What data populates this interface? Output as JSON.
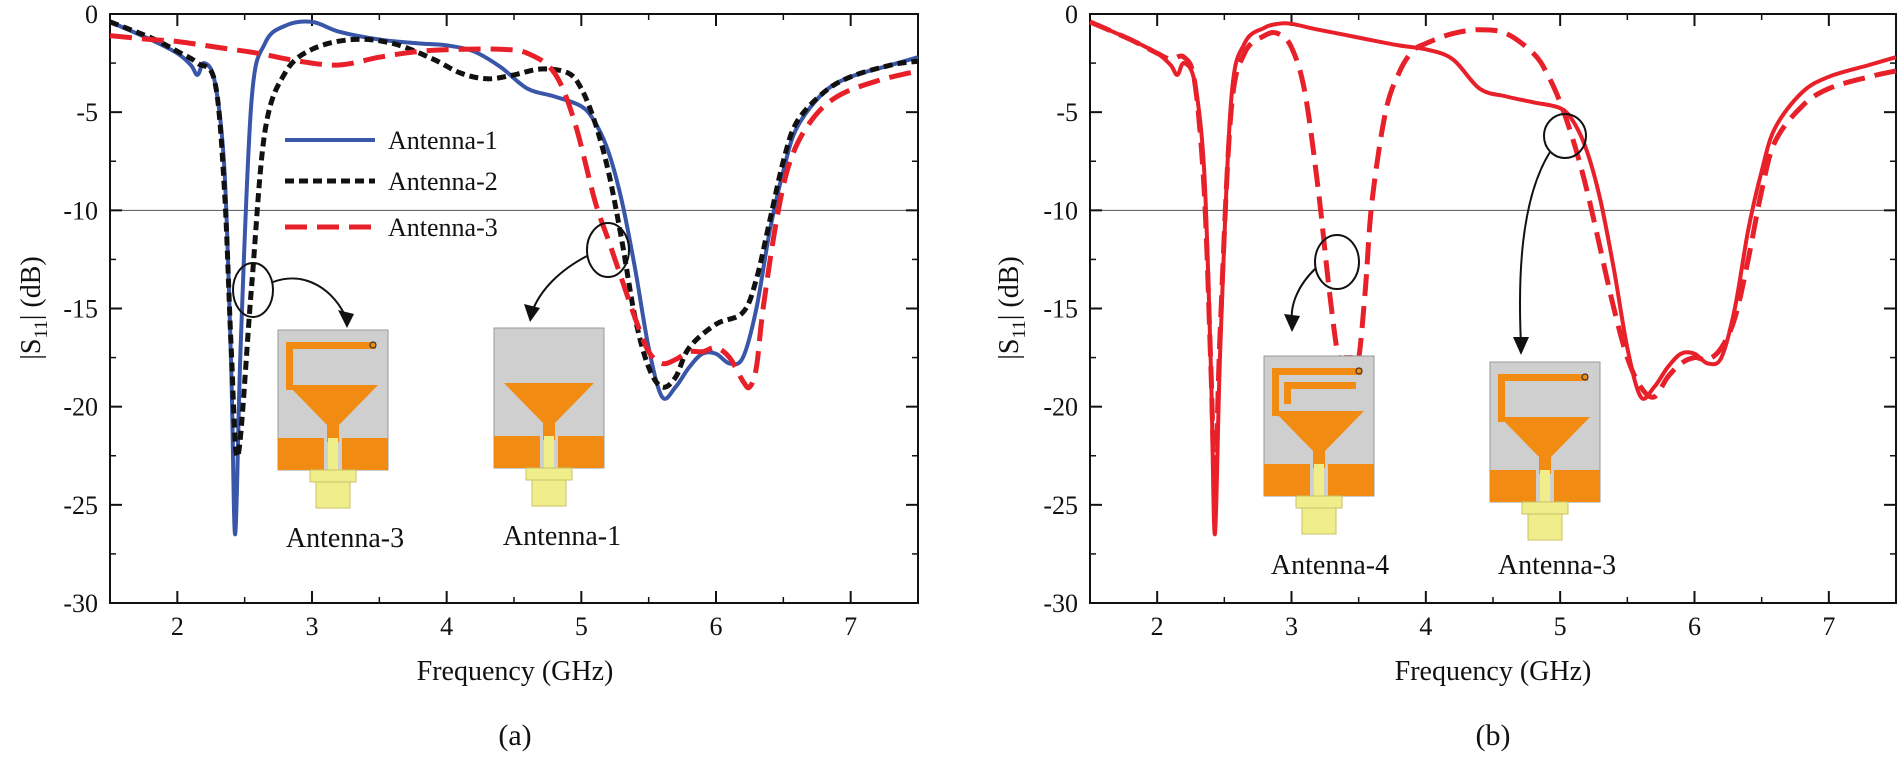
{
  "colors": {
    "antenna1": "#3a56a8",
    "antenna2": "#111111",
    "antenna3": "#e8202a",
    "antenna4": "#e8202a",
    "substrate": "#cfcfcf",
    "copper": "#f18b12",
    "connector": "#f0ee8a",
    "reference_line": "#555555"
  },
  "chart_data": [
    {
      "type": "line",
      "panel_label": "(a)",
      "xlabel": "Frequency (GHz)",
      "ylabel": "|S",
      "ylabel_sub": "11",
      "ylabel_tail": "| (dB)",
      "xlim": [
        1.5,
        7.5
      ],
      "ylim": [
        -30,
        0
      ],
      "xticks": [
        2,
        3,
        4,
        5,
        6,
        7
      ],
      "yticks": [
        0,
        -5,
        -10,
        -15,
        -20,
        -25,
        -30
      ],
      "reference_line_y": -10,
      "legend_position": "upper-center",
      "series": [
        {
          "name": "Antenna-1",
          "style": "solid",
          "x": [
            1.5,
            1.8,
            2.0,
            2.1,
            2.15,
            2.2,
            2.28,
            2.35,
            2.4,
            2.43,
            2.47,
            2.55,
            2.65,
            2.8,
            3.0,
            3.2,
            3.5,
            3.8,
            4.0,
            4.2,
            4.4,
            4.6,
            4.8,
            5.0,
            5.1,
            5.2,
            5.3,
            5.4,
            5.5,
            5.6,
            5.7,
            5.8,
            5.9,
            6.0,
            6.1,
            6.2,
            6.3,
            6.4,
            6.5,
            6.6,
            6.8,
            7.0,
            7.3,
            7.5
          ],
          "y": [
            -0.4,
            -1.3,
            -2.0,
            -2.6,
            -3.1,
            -2.5,
            -3.5,
            -8.0,
            -18.0,
            -26.5,
            -17.0,
            -4.5,
            -1.5,
            -0.6,
            -0.4,
            -0.9,
            -1.3,
            -1.5,
            -1.6,
            -1.9,
            -2.7,
            -3.8,
            -4.2,
            -4.7,
            -5.5,
            -7.0,
            -9.5,
            -13.0,
            -17.0,
            -19.5,
            -19.0,
            -18.0,
            -17.3,
            -17.3,
            -17.8,
            -17.5,
            -15.0,
            -11.0,
            -8.0,
            -5.8,
            -4.0,
            -3.2,
            -2.6,
            -2.2
          ]
        },
        {
          "name": "Antenna-2",
          "style": "dotted",
          "x": [
            1.5,
            1.8,
            2.0,
            2.15,
            2.28,
            2.35,
            2.4,
            2.45,
            2.55,
            2.65,
            2.8,
            3.0,
            3.3,
            3.6,
            3.9,
            4.1,
            4.3,
            4.5,
            4.7,
            4.9,
            5.0,
            5.1,
            5.2,
            5.3,
            5.4,
            5.5,
            5.6,
            5.7,
            5.8,
            6.0,
            6.2,
            6.3,
            6.4,
            6.5,
            6.6,
            6.8,
            7.0,
            7.3,
            7.5
          ],
          "y": [
            -0.4,
            -1.2,
            -1.9,
            -2.5,
            -3.5,
            -9.0,
            -17.0,
            -22.5,
            -14.0,
            -6.0,
            -3.0,
            -1.8,
            -1.3,
            -1.5,
            -2.3,
            -3.0,
            -3.3,
            -3.1,
            -2.8,
            -3.0,
            -3.8,
            -5.5,
            -8.0,
            -11.5,
            -15.5,
            -18.0,
            -19.0,
            -18.5,
            -17.0,
            -15.8,
            -15.2,
            -13.5,
            -10.5,
            -7.5,
            -5.5,
            -4.0,
            -3.2,
            -2.6,
            -2.4
          ]
        },
        {
          "name": "Antenna-3",
          "style": "dashed",
          "x": [
            1.5,
            1.8,
            2.0,
            2.3,
            2.6,
            2.9,
            3.2,
            3.5,
            3.8,
            4.1,
            4.4,
            4.6,
            4.8,
            4.95,
            5.1,
            5.2,
            5.3,
            5.4,
            5.5,
            5.6,
            5.7,
            5.8,
            5.9,
            6.0,
            6.1,
            6.2,
            6.25,
            6.3,
            6.35,
            6.45,
            6.55,
            6.7,
            6.9,
            7.2,
            7.5
          ],
          "y": [
            -1.1,
            -1.3,
            -1.4,
            -1.7,
            -2.0,
            -2.4,
            -2.6,
            -2.2,
            -1.9,
            -1.8,
            -1.8,
            -2.0,
            -3.0,
            -5.5,
            -9.5,
            -11.5,
            -13.5,
            -15.5,
            -17.2,
            -17.8,
            -17.6,
            -17.2,
            -17.2,
            -17.0,
            -17.5,
            -18.7,
            -19.0,
            -18.0,
            -15.0,
            -10.5,
            -7.5,
            -5.5,
            -4.2,
            -3.4,
            -2.9
          ]
        }
      ],
      "insets": [
        {
          "label": "Antenna-3",
          "variant": "antenna-3"
        },
        {
          "label": "Antenna-1",
          "variant": "antenna-1"
        }
      ]
    },
    {
      "type": "line",
      "panel_label": "(b)",
      "xlabel": "Frequency (GHz)",
      "ylabel": "|S",
      "ylabel_sub": "11",
      "ylabel_tail": "| (dB)",
      "xlim": [
        1.5,
        7.5
      ],
      "ylim": [
        -30,
        0
      ],
      "xticks": [
        2,
        3,
        4,
        5,
        6,
        7
      ],
      "yticks": [
        0,
        -5,
        -10,
        -15,
        -20,
        -25,
        -30
      ],
      "reference_line_y": -10,
      "series": [
        {
          "name": "Antenna-3",
          "style": "solid",
          "x": [
            1.5,
            1.8,
            2.0,
            2.1,
            2.15,
            2.2,
            2.28,
            2.35,
            2.4,
            2.43,
            2.47,
            2.55,
            2.65,
            2.8,
            2.9,
            3.0,
            3.2,
            3.5,
            3.8,
            4.0,
            4.2,
            4.4,
            4.6,
            4.8,
            5.0,
            5.1,
            5.2,
            5.3,
            5.4,
            5.5,
            5.6,
            5.7,
            5.8,
            5.9,
            6.0,
            6.1,
            6.2,
            6.3,
            6.4,
            6.5,
            6.6,
            6.8,
            7.0,
            7.3,
            7.5
          ],
          "y": [
            -0.4,
            -1.3,
            -2.0,
            -2.6,
            -3.1,
            -2.5,
            -3.5,
            -8.0,
            -18.0,
            -26.5,
            -17.0,
            -4.5,
            -1.5,
            -0.7,
            -0.5,
            -0.5,
            -0.8,
            -1.2,
            -1.6,
            -1.8,
            -2.3,
            -3.8,
            -4.2,
            -4.5,
            -4.8,
            -5.5,
            -7.0,
            -9.5,
            -13.0,
            -17.0,
            -19.5,
            -19.0,
            -18.0,
            -17.3,
            -17.3,
            -17.8,
            -17.5,
            -15.0,
            -11.0,
            -8.0,
            -5.8,
            -4.0,
            -3.2,
            -2.6,
            -2.2
          ]
        },
        {
          "name": "Antenna-4",
          "style": "dashed",
          "x": [
            1.5,
            1.8,
            2.0,
            2.1,
            2.2,
            2.28,
            2.35,
            2.4,
            2.43,
            2.47,
            2.55,
            2.65,
            2.8,
            2.9,
            3.0,
            3.1,
            3.2,
            3.28,
            3.35,
            3.4,
            3.45,
            3.5,
            3.55,
            3.6,
            3.7,
            3.8,
            3.9,
            4.0,
            4.2,
            4.4,
            4.6,
            4.8,
            4.9,
            5.0,
            5.1,
            5.2,
            5.3,
            5.4,
            5.5,
            5.6,
            5.7,
            5.8,
            5.9,
            6.0,
            6.1,
            6.2,
            6.3,
            6.4,
            6.5,
            6.6,
            6.8,
            7.0,
            7.3,
            7.5
          ],
          "y": [
            -0.4,
            -1.3,
            -2.0,
            -2.3,
            -2.2,
            -3.5,
            -9.0,
            -18.0,
            -24.0,
            -16.0,
            -5.0,
            -2.0,
            -1.1,
            -1.0,
            -1.7,
            -4.0,
            -9.0,
            -14.0,
            -17.5,
            -17.5,
            -17.5,
            -17.5,
            -14.0,
            -9.5,
            -5.0,
            -3.0,
            -1.9,
            -1.5,
            -1.0,
            -0.8,
            -1.0,
            -2.0,
            -3.0,
            -4.5,
            -6.5,
            -9.0,
            -12.0,
            -15.0,
            -17.5,
            -19.0,
            -19.5,
            -18.5,
            -17.8,
            -17.5,
            -17.6,
            -17.0,
            -15.5,
            -12.5,
            -9.0,
            -6.5,
            -4.7,
            -3.8,
            -3.2,
            -2.9
          ]
        }
      ],
      "insets": [
        {
          "label": "Antenna-4",
          "variant": "antenna-4"
        },
        {
          "label": "Antenna-3",
          "variant": "antenna-3"
        }
      ]
    }
  ]
}
